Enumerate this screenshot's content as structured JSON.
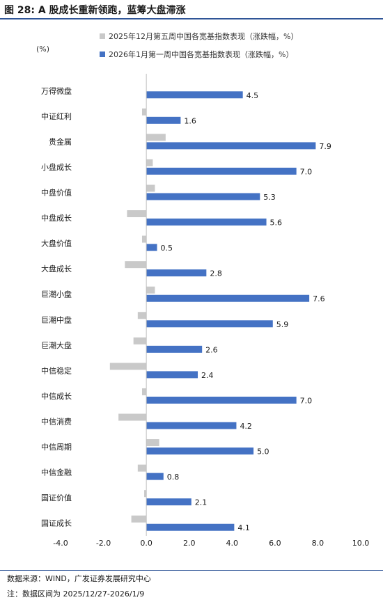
{
  "figure": {
    "number": "图 28:",
    "title": "A 股成长重新领跑，蓝筹大盘滞涨"
  },
  "chart_data": {
    "type": "bar",
    "orientation": "horizontal",
    "unit_label": "(%)",
    "categories": [
      "万得微盘",
      "中证红利",
      "贵金属",
      "小盘成长",
      "中盘价值",
      "中盘成长",
      "大盘价值",
      "大盘成长",
      "巨潮小盘",
      "巨潮中盘",
      "巨潮大盘",
      "中信稳定",
      "中信成长",
      "中信消费",
      "中信周期",
      "中信金融",
      "国证价值",
      "国证成长"
    ],
    "series": [
      {
        "name": "2025年12月第五周中国各宽基指数表现（涨跌幅，%）",
        "color": "#c9c9c9",
        "values": [
          0.0,
          -0.2,
          0.9,
          0.3,
          0.4,
          -0.9,
          -0.2,
          -1.0,
          0.4,
          -0.4,
          -0.6,
          -1.7,
          -0.2,
          -1.3,
          0.6,
          -0.4,
          -0.1,
          -0.7
        ],
        "show_labels": false
      },
      {
        "name": "2026年1月第一周中国各宽基指数表现（涨跌幅，%）",
        "color": "#4472c4",
        "values": [
          4.5,
          1.6,
          7.9,
          7.0,
          5.3,
          5.6,
          0.5,
          2.8,
          7.6,
          5.9,
          2.6,
          2.4,
          7.0,
          4.2,
          5.0,
          0.8,
          2.1,
          4.1
        ],
        "show_labels": true
      }
    ],
    "xlim": [
      -4.0,
      10.0
    ],
    "xticks": [
      -4.0,
      -2.0,
      0.0,
      2.0,
      4.0,
      6.0,
      8.0,
      10.0
    ],
    "tick_labels": [
      "-4.0",
      "-2.0",
      "0.0",
      "2.0",
      "4.0",
      "6.0",
      "8.0",
      "10.0"
    ],
    "legend_position": "top",
    "grid": false
  },
  "footer": {
    "source": "数据来源：WIND，广发证券发展研究中心",
    "note": "注：数据区间为 2025/12/27-2026/1/9"
  }
}
